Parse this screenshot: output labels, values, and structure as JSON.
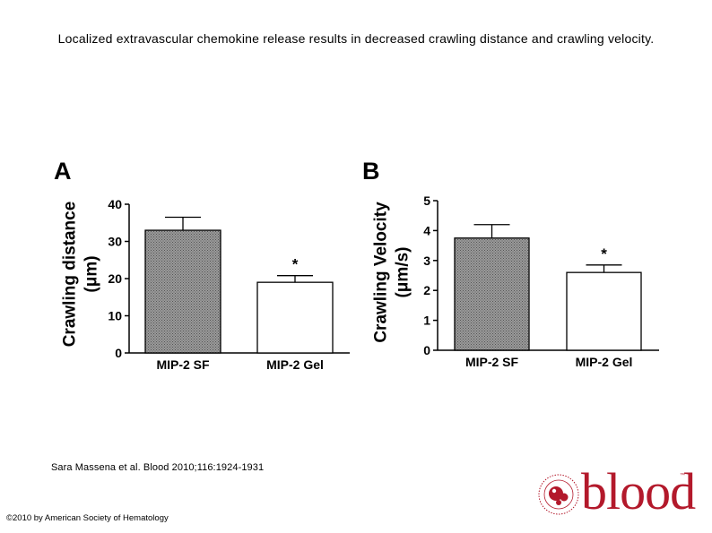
{
  "header": {
    "title": "Localized extravascular chemokine release results in decreased crawling distance and crawling velocity."
  },
  "footer": {
    "citation": "Sara Massena et al. Blood 2010;116:1924-1931",
    "copyright": "©2010 by American Society of Hematology",
    "logo_text": "blood",
    "logo_ring_text": "AMERICAN SOCIETY OF HEMATOLOGY"
  },
  "colors": {
    "brand_red": "#b3192b",
    "hatched_bar": "#8c8c8c",
    "open_bar": "#ffffff"
  },
  "chart_data": [
    {
      "panel_label": "A",
      "type": "bar",
      "categories": [
        "MIP-2 SF",
        "MIP-2 Gel"
      ],
      "values": [
        33,
        19
      ],
      "errors": [
        3.5,
        1.8
      ],
      "significance": [
        "",
        "*"
      ],
      "bar_fills": [
        "hatched",
        "open"
      ],
      "ylabel": "Crawling distance (μm)",
      "ylim": [
        0,
        40
      ],
      "yticks": [
        0,
        10,
        20,
        30,
        40
      ],
      "grid": false
    },
    {
      "panel_label": "B",
      "type": "bar",
      "categories": [
        "MIP-2 SF",
        "MIP-2 Gel"
      ],
      "values": [
        3.75,
        2.6
      ],
      "errors": [
        0.45,
        0.25
      ],
      "significance": [
        "",
        "*"
      ],
      "bar_fills": [
        "hatched",
        "open"
      ],
      "ylabel": "Crawling Velocity (μm/s)",
      "ylim": [
        0,
        5
      ],
      "yticks": [
        0,
        1,
        2,
        3,
        4,
        5
      ],
      "grid": false
    }
  ]
}
